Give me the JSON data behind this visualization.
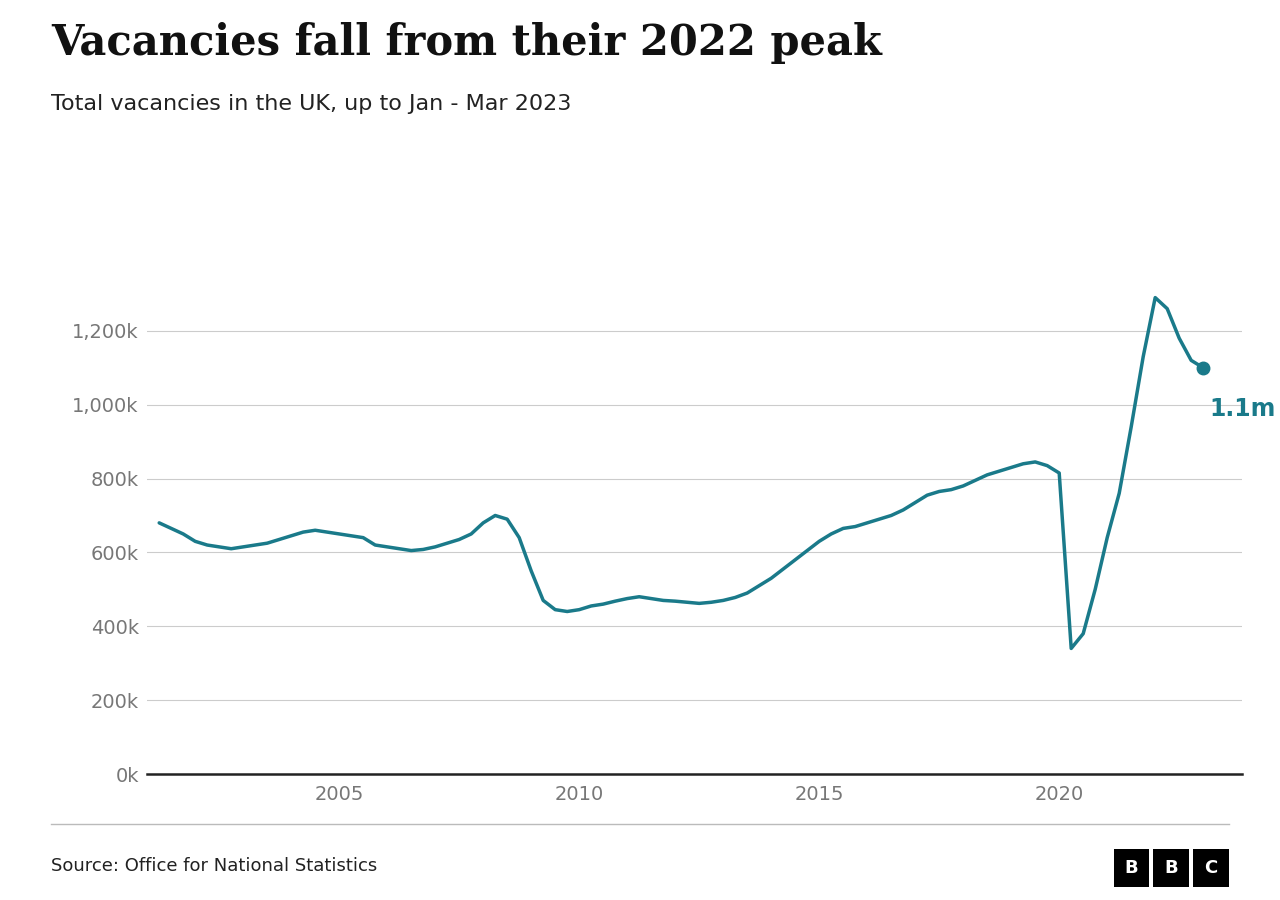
{
  "title": "Vacancies fall from their 2022 peak",
  "subtitle": "Total vacancies in the UK, up to Jan - Mar 2023",
  "source": "Source: Office for National Statistics",
  "line_color": "#1a7a8a",
  "annotation_color": "#1a7a8a",
  "annotation_text": "1.1m",
  "background_color": "#ffffff",
  "ylabel_ticks": [
    0,
    200000,
    400000,
    600000,
    800000,
    1000000,
    1200000
  ],
  "ylabel_labels": [
    "0k",
    "200k",
    "400k",
    "600k",
    "800k",
    "1,000k",
    "1,200k"
  ],
  "xticks": [
    2005,
    2010,
    2015,
    2020
  ],
  "ylim": [
    0,
    1450000
  ],
  "xlim_start": 2001.0,
  "xlim_end": 2023.8,
  "data": {
    "x": [
      2001.25,
      2001.5,
      2001.75,
      2002.0,
      2002.25,
      2002.5,
      2002.75,
      2003.0,
      2003.25,
      2003.5,
      2003.75,
      2004.0,
      2004.25,
      2004.5,
      2004.75,
      2005.0,
      2005.25,
      2005.5,
      2005.75,
      2006.0,
      2006.25,
      2006.5,
      2006.75,
      2007.0,
      2007.25,
      2007.5,
      2007.75,
      2008.0,
      2008.25,
      2008.5,
      2008.75,
      2009.0,
      2009.25,
      2009.5,
      2009.75,
      2010.0,
      2010.25,
      2010.5,
      2010.75,
      2011.0,
      2011.25,
      2011.5,
      2011.75,
      2012.0,
      2012.25,
      2012.5,
      2012.75,
      2013.0,
      2013.25,
      2013.5,
      2013.75,
      2014.0,
      2014.25,
      2014.5,
      2014.75,
      2015.0,
      2015.25,
      2015.5,
      2015.75,
      2016.0,
      2016.25,
      2016.5,
      2016.75,
      2017.0,
      2017.25,
      2017.5,
      2017.75,
      2018.0,
      2018.25,
      2018.5,
      2018.75,
      2019.0,
      2019.25,
      2019.5,
      2019.75,
      2020.0,
      2020.25,
      2020.5,
      2020.75,
      2021.0,
      2021.25,
      2021.5,
      2021.75,
      2022.0,
      2022.25,
      2022.5,
      2022.75,
      2023.0
    ],
    "y": [
      680000,
      665000,
      650000,
      630000,
      620000,
      615000,
      610000,
      615000,
      620000,
      625000,
      635000,
      645000,
      655000,
      660000,
      655000,
      650000,
      645000,
      640000,
      620000,
      615000,
      610000,
      605000,
      608000,
      615000,
      625000,
      635000,
      650000,
      680000,
      700000,
      690000,
      640000,
      550000,
      470000,
      445000,
      440000,
      445000,
      455000,
      460000,
      468000,
      475000,
      480000,
      475000,
      470000,
      468000,
      465000,
      462000,
      465000,
      470000,
      478000,
      490000,
      510000,
      530000,
      555000,
      580000,
      605000,
      630000,
      650000,
      665000,
      670000,
      680000,
      690000,
      700000,
      715000,
      735000,
      755000,
      765000,
      770000,
      780000,
      795000,
      810000,
      820000,
      830000,
      840000,
      845000,
      835000,
      815000,
      340000,
      380000,
      500000,
      640000,
      760000,
      940000,
      1130000,
      1290000,
      1260000,
      1180000,
      1120000,
      1100000
    ]
  }
}
